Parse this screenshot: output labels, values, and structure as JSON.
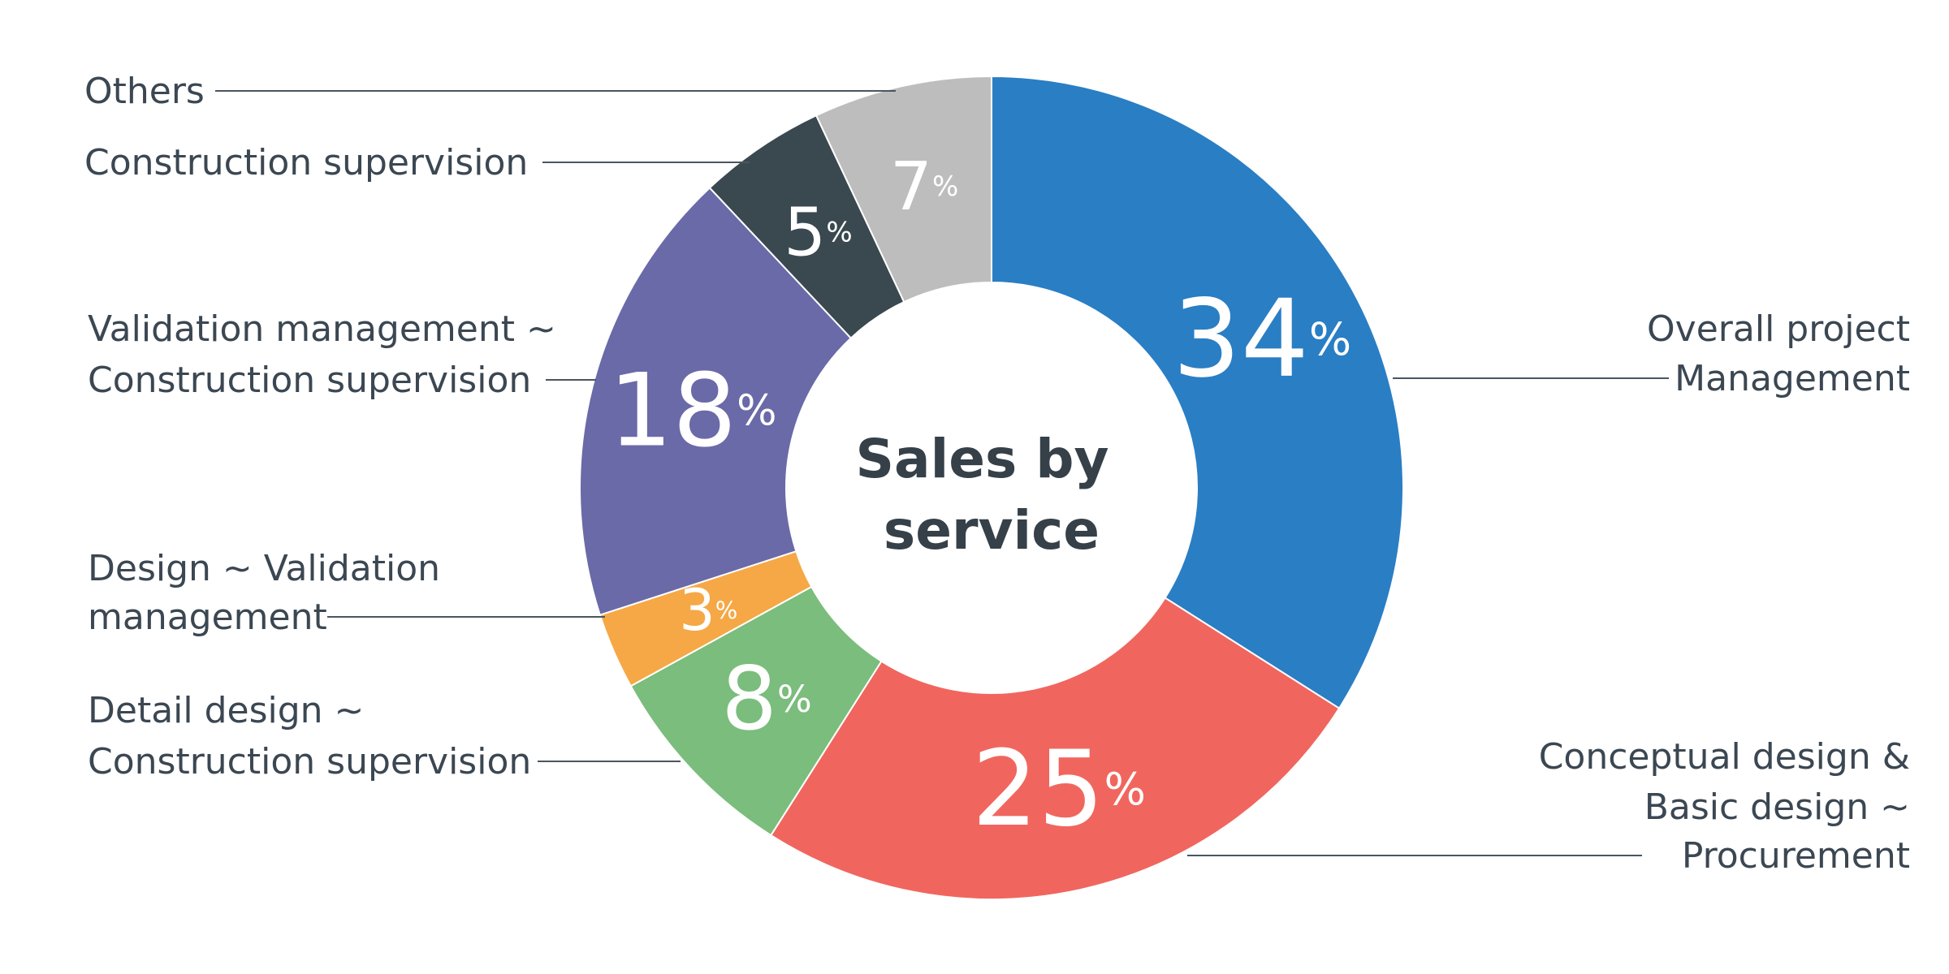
{
  "chart_data": {
    "type": "pie",
    "title": "Sales by service",
    "center_label": [
      "Sales by",
      "service"
    ],
    "categories": [
      "Overall project Management",
      "Conceptual design & Basic design ~ Procurement",
      "Detail design ~ Construction supervision",
      "Design ~ Validation management",
      "Validation management ~ Construction supervision",
      "Construction supervision",
      "Others"
    ],
    "values": [
      34,
      25,
      8,
      3,
      18,
      5,
      7
    ],
    "unit": "%",
    "colors": [
      "#2a7ec4",
      "#f0665e",
      "#7bbd7c",
      "#f5a845",
      "#6a6aa8",
      "#3a4850",
      "#bdbdbd"
    ],
    "category_label_lines": [
      [
        "Overall project",
        "Management"
      ],
      [
        "Conceptual design &",
        "Basic design ~",
        "Procurement"
      ],
      [
        "Detail design ~",
        "Construction supervision"
      ],
      [
        "Design ~ Validation",
        "management"
      ],
      [
        "Validation management ~",
        "Construction supervision"
      ],
      [
        "Construction supervision"
      ],
      [
        "Others"
      ]
    ],
    "start": "12 o'clock",
    "direction": "clockwise",
    "chart_style": "donut"
  }
}
